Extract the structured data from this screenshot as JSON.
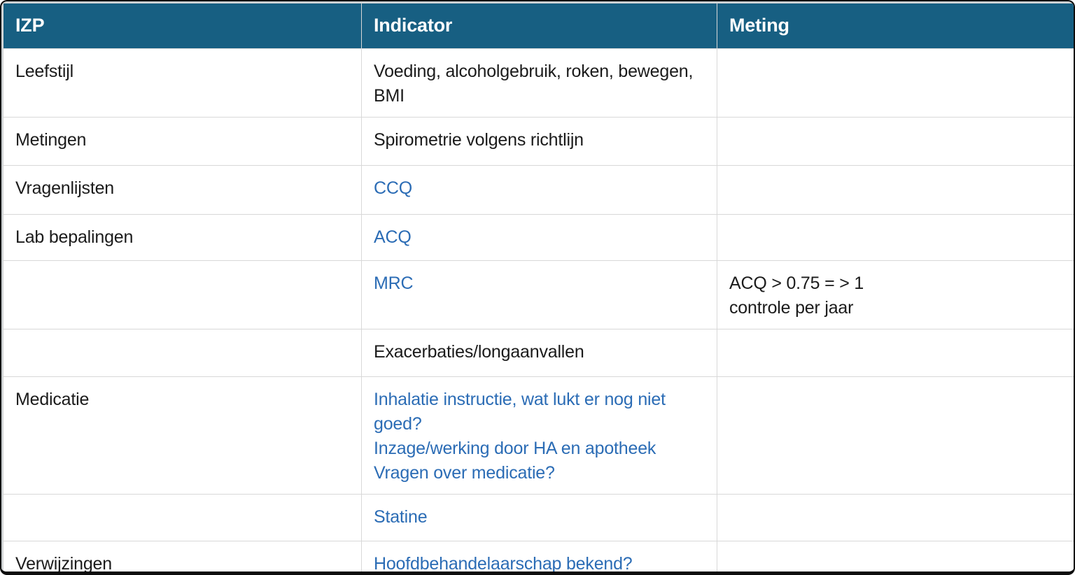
{
  "colors": {
    "header_bg": "#175f82",
    "header_text": "#ffffff",
    "link": "#2b6cb5",
    "text": "#1b1b1b",
    "gridline": "#d8d8d8",
    "frame": "#0d0d0d",
    "chrome": "#cdd2d4",
    "table_bg": "#ffffff"
  },
  "table": {
    "headers": [
      {
        "label": "IZP"
      },
      {
        "label": "Indicator"
      },
      {
        "label": "Meting"
      }
    ],
    "rows": [
      {
        "izp": "Leefstijl",
        "indicator": [
          {
            "text": "Voeding, alcoholgebruik, roken, bewegen, BMI",
            "link": false
          }
        ],
        "meting": []
      },
      {
        "izp": "Metingen",
        "indicator": [
          {
            "text": "Spirometrie volgens richtlijn",
            "link": false
          }
        ],
        "meting": []
      },
      {
        "izp": "Vragenlijsten",
        "indicator": [
          {
            "text": "CCQ",
            "link": true
          }
        ],
        "meting": []
      },
      {
        "izp": "Lab bepalingen",
        "indicator": [
          {
            "text": "ACQ",
            "link": true
          }
        ],
        "meting": []
      },
      {
        "izp": "",
        "indicator": [
          {
            "text": "MRC",
            "link": true
          }
        ],
        "meting": [
          {
            "text": "ACQ > 0.75 = > 1",
            "link": false
          },
          {
            "text": "controle per jaar",
            "link": false
          }
        ]
      },
      {
        "izp": "",
        "indicator": [
          {
            "text": "Exacerbaties/longaanvallen",
            "link": false
          }
        ],
        "meting": []
      },
      {
        "izp": "Medicatie",
        "indicator": [
          {
            "text": "Inhalatie instructie, wat lukt er nog niet goed?",
            "link": true
          },
          {
            "text": "Inzage/werking door HA en apotheek",
            "link": true
          },
          {
            "text": "Vragen over medicatie?",
            "link": true
          }
        ],
        "meting": []
      },
      {
        "izp": "",
        "indicator": [
          {
            "text": "Statine",
            "link": true
          }
        ],
        "meting": []
      },
      {
        "izp": "Verwijzingen",
        "indicator": [
          {
            "text": "Hoofdbehandelaarschap bekend?",
            "link": true
          }
        ],
        "meting": []
      }
    ]
  }
}
